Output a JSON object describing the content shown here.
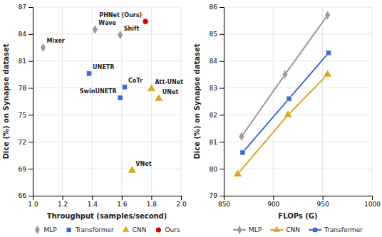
{
  "chart_data": [
    {
      "type": "scatter",
      "x_label": "Throughput (samples/second)",
      "y_label": "Dice (%) on Synapse dataset",
      "xlim": [
        1.0,
        2.0
      ],
      "ylim": [
        66,
        87
      ],
      "xticks": [
        {
          "value": 1.0,
          "label": "1.0"
        },
        1.2,
        1.4,
        1.6,
        1.8,
        {
          "value": 2.0,
          "label": "2.0"
        }
      ],
      "yticks": [
        66,
        69,
        72,
        75,
        78,
        81,
        84,
        87
      ],
      "grid": true,
      "legend": "bottom",
      "series": [
        {
          "name": "MLP",
          "color": "#999999",
          "marker": "diamond",
          "x": [
            1.07,
            1.42,
            1.59
          ],
          "values": [
            82.5,
            84.5,
            83.9
          ],
          "labels": [
            "Mixer",
            "Wave",
            "Shift"
          ]
        },
        {
          "name": "Transformer",
          "color": "#4169cd",
          "marker": "square",
          "x": [
            1.38,
            1.62,
            1.59
          ],
          "values": [
            79.6,
            78.1,
            76.9
          ],
          "labels": [
            "UNETR",
            "CoTr",
            "SwinUNETR"
          ]
        },
        {
          "name": "CNN",
          "color": "#DAA520",
          "marker": "triangle",
          "x": [
            1.8,
            1.85,
            1.67
          ],
          "values": [
            77.9,
            76.8,
            68.8
          ],
          "labels": [
            "Att-UNet",
            "UNet",
            "VNet"
          ]
        },
        {
          "name": "Ours",
          "color": "#cc0000",
          "marker": "circle",
          "x": [
            1.76
          ],
          "values": [
            85.4
          ],
          "labels": [
            "PHNet (Ours)"
          ]
        }
      ]
    },
    {
      "type": "line",
      "x_label": "FLOPs (G)",
      "y_label": "Dice (%) on Synapse dataset",
      "xlim": [
        850,
        1000
      ],
      "ylim": [
        79,
        86
      ],
      "xticks": [
        850,
        900,
        950,
        1000
      ],
      "yticks": [
        79,
        80,
        81,
        82,
        83,
        84,
        85,
        86
      ],
      "grid": true,
      "legend": "bottom",
      "series": [
        {
          "name": "MLP",
          "color": "#999999",
          "marker": "diamond",
          "x": [
            868,
            912,
            955
          ],
          "values": [
            81.2,
            83.5,
            85.7
          ]
        },
        {
          "name": "CNN",
          "color": "#DAA520",
          "marker": "triangle",
          "x": [
            864,
            915,
            955
          ],
          "values": [
            79.8,
            82.0,
            83.5
          ]
        },
        {
          "name": "Transformer",
          "color": "#4169cd",
          "marker": "square",
          "x": [
            869,
            916,
            956
          ],
          "values": [
            80.6,
            82.6,
            84.3
          ]
        }
      ]
    }
  ]
}
